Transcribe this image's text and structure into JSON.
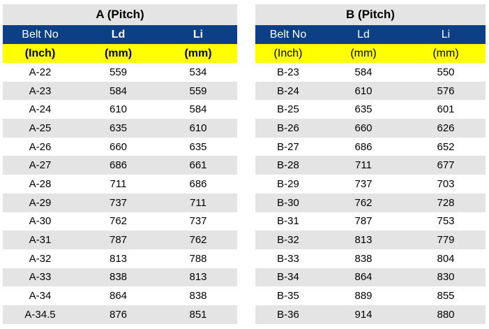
{
  "table_a": {
    "title": "A (Pitch)",
    "headers": [
      "Belt No",
      "Ld",
      "Li"
    ],
    "units": [
      "(Inch)",
      "(mm)",
      "(mm)"
    ],
    "rows": [
      [
        "A-22",
        "559",
        "534"
      ],
      [
        "A-23",
        "584",
        "559"
      ],
      [
        "A-24",
        "610",
        "584"
      ],
      [
        "A-25",
        "635",
        "610"
      ],
      [
        "A-26",
        "660",
        "635"
      ],
      [
        "A-27",
        "686",
        "661"
      ],
      [
        "A-28",
        "711",
        "686"
      ],
      [
        "A-29",
        "737",
        "711"
      ],
      [
        "A-30",
        "762",
        "737"
      ],
      [
        "A-31",
        "787",
        "762"
      ],
      [
        "A-32",
        "813",
        "788"
      ],
      [
        "A-33",
        "838",
        "813"
      ],
      [
        "A-34",
        "864",
        "838"
      ],
      [
        "A-34.5",
        "876",
        "851"
      ]
    ]
  },
  "table_b": {
    "title": "B (Pitch)",
    "headers": [
      "Belt No",
      "Ld",
      "Li"
    ],
    "units": [
      "(Inch)",
      "(mm)",
      "(mm)"
    ],
    "rows": [
      [
        "B-23",
        "584",
        "550"
      ],
      [
        "B-24",
        "610",
        "576"
      ],
      [
        "B-25",
        "635",
        "601"
      ],
      [
        "B-26",
        "660",
        "626"
      ],
      [
        "B-27",
        "686",
        "652"
      ],
      [
        "B-28",
        "711",
        "677"
      ],
      [
        "B-29",
        "737",
        "703"
      ],
      [
        "B-30",
        "762",
        "728"
      ],
      [
        "B-31",
        "787",
        "753"
      ],
      [
        "B-32",
        "813",
        "779"
      ],
      [
        "B-33",
        "838",
        "804"
      ],
      [
        "B-34",
        "864",
        "830"
      ],
      [
        "B-35",
        "889",
        "855"
      ],
      [
        "B-36",
        "914",
        "880"
      ]
    ]
  },
  "colors": {
    "header_blue": "#0d3f87",
    "unit_yellow": "#ffff00",
    "band_gray": "#e4e4e4"
  }
}
